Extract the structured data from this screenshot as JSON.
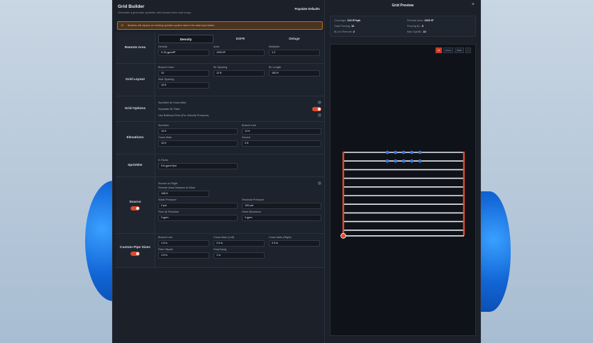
{
  "app": {
    "title": "Grid Builder",
    "subtitle": "Generate a grid-style sprinkler with branch lines and loops.",
    "populate_label": "Populate Defaults",
    "warning": "Builders will replace an existing sprinkler system data in the data input tables."
  },
  "remote_area": {
    "label": "Remote Area",
    "tabs": [
      "Density",
      "ESFR",
      "Deluge"
    ],
    "active_tab": "Density",
    "density_label": "Density",
    "density_value": "0.15 gpm/ft²",
    "area_label": "Area",
    "area_value": "1200 ft²",
    "multiplier_label": "Multiplier",
    "multiplier_value": "1.2"
  },
  "grid_layout": {
    "label": "Grid Layout",
    "branch_lines_label": "Branch Lines",
    "branch_lines_value": "10",
    "bl_spacing_label": "BL Spacing",
    "bl_spacing_value": "12 ft",
    "bl_length_label": "BL Length",
    "bl_length_value": "160 ft",
    "side_spacing_label": "Side Spacing",
    "side_spacing_value": "10 ft"
  },
  "grid_options": {
    "label": "Grid Options",
    "opt1": "Sprinkler at Cross Main",
    "opt2": "Separate BL Riser",
    "opt3": "Use Bullhead Tees (For Velocity Pressure)"
  },
  "elevations": {
    "label": "Elevations",
    "sprinkler_label": "Sprinkler",
    "sprinkler_value": "10 ft",
    "branch_line_label": "Branch Line",
    "branch_line_value": "12 ft",
    "cross_main_label": "Cross Main",
    "cross_main_value": "10 ft",
    "source_label": "Source",
    "source_value": "0 ft"
  },
  "sprinkler": {
    "label": "Sprinkler",
    "kfactor_label": "K-Factor",
    "kfactor_value": "5.6 gpm/√psi"
  },
  "source": {
    "label": "Source",
    "source_on_right": "Source on Right",
    "remote_distance_label": "Remote Area Distance to Riser",
    "remote_distance_value": "108 ft",
    "static_label": "Static Pressure",
    "static_value": "0 psi",
    "residual_label": "Residual Pressure",
    "residual_value": "100 psi",
    "flow_label": "Flow @ Residual",
    "flow_value": "0 gpm",
    "hose_label": "Hose Allowance",
    "hose_value": "0 gpm"
  },
  "pipe_sizes": {
    "label": "Custom Pipe Sizes",
    "branch_line_label": "Branch Line",
    "branch_line_value": "1.5 in",
    "cm_left_label": "Cross Main (Left)",
    "cm_left_value": "2.5 in",
    "cm_right_label": "Cross Main (Right)",
    "cm_right_value": "2.5 in",
    "riser_label": "Riser Nipple",
    "riser_value": "1.5 in",
    "drop_label": "Drop/Sprig",
    "drop_value": "1 in"
  },
  "preview": {
    "title": "Grid Preview",
    "coverage_label": "Coverage:",
    "coverage_value": "120 ft²/spk",
    "remote_area_label": "Remote Area:",
    "remote_area_value": "1200 ft²",
    "total_flowing_label": "Total Flowing:",
    "total_flowing_value": "10",
    "flowing_bl_label": "Flowing BL:",
    "flowing_bl_value": "5",
    "bl_remote_label": "BLs in Remote:",
    "bl_remote_value": "2",
    "max_spk_label": "Max Spk/BL:",
    "max_spk_value": "10",
    "buttons": [
      "Fit",
      "Zoom",
      "Wide",
      "⛶"
    ]
  },
  "colors": {
    "accent": "#e04a2e",
    "bluedot": "#3f7de0",
    "line": "#e8ebef"
  }
}
